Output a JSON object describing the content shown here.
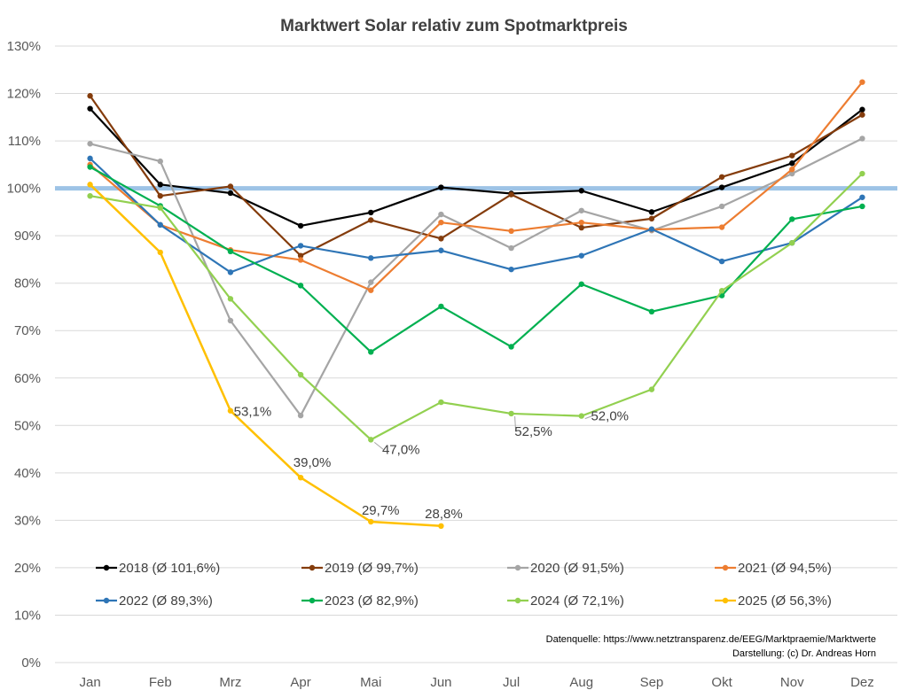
{
  "chart_data": {
    "type": "line",
    "title": "Marktwert Solar relativ zum Spotmarktpreis",
    "categories": [
      "Jan",
      "Feb",
      "Mrz",
      "Apr",
      "Mai",
      "Jun",
      "Jul",
      "Aug",
      "Sep",
      "Okt",
      "Nov",
      "Dez"
    ],
    "yticks": [
      "0%",
      "10%",
      "20%",
      "30%",
      "40%",
      "50%",
      "60%",
      "70%",
      "80%",
      "90%",
      "100%",
      "110%",
      "120%",
      "130%"
    ],
    "ylim": [
      0,
      130
    ],
    "grid": true,
    "legend_position": "bottom",
    "reference_line": {
      "value": 100,
      "color": "#9dc3e6"
    },
    "series": [
      {
        "name": "2018 (Ø 101,6%)",
        "color": "#000000",
        "values": [
          116.8,
          100.8,
          99.0,
          92.1,
          94.9,
          100.2,
          98.9,
          99.5,
          95.0,
          100.2,
          105.3,
          116.6
        ]
      },
      {
        "name": "2019 (Ø 99,7%)",
        "color": "#843c0c",
        "values": [
          119.5,
          98.4,
          100.4,
          85.8,
          93.3,
          89.4,
          98.7,
          91.7,
          93.6,
          102.4,
          106.9,
          115.5
        ]
      },
      {
        "name": "2020 (Ø 91,5%)",
        "color": "#a5a5a5",
        "values": [
          109.4,
          105.7,
          72.1,
          52.1,
          80.2,
          94.5,
          87.4,
          95.3,
          91.1,
          96.2,
          103.1,
          110.5
        ]
      },
      {
        "name": "2021 (Ø 94,5%)",
        "color": "#ed7d31",
        "values": [
          105.0,
          92.3,
          87.0,
          84.9,
          78.5,
          92.8,
          91.0,
          92.8,
          91.3,
          91.8,
          104.0,
          122.4
        ]
      },
      {
        "name": "2022 (Ø 89,3%)",
        "color": "#2e75b6",
        "values": [
          106.3,
          92.3,
          82.3,
          87.9,
          85.3,
          86.9,
          82.9,
          85.8,
          91.4,
          84.6,
          88.5,
          98.1
        ]
      },
      {
        "name": "2023 (Ø 82,9%)",
        "color": "#00b050",
        "values": [
          104.5,
          96.3,
          86.7,
          79.5,
          65.5,
          75.1,
          66.6,
          79.8,
          74.0,
          77.4,
          93.5,
          96.2
        ]
      },
      {
        "name": "2024 (Ø 72,1%)",
        "color": "#92d050",
        "values": [
          98.4,
          95.9,
          76.7,
          60.7,
          47.0,
          54.9,
          52.5,
          52.0,
          57.6,
          78.4,
          88.5,
          103.1
        ]
      },
      {
        "name": "2025 (Ø 56,3%)",
        "color": "#ffc000",
        "values": [
          100.8,
          86.5,
          53.1,
          39.0,
          29.7,
          28.8,
          null,
          null,
          null,
          null,
          null,
          null
        ]
      }
    ],
    "annotations": [
      {
        "series": "2025 (Ø 56,3%)",
        "category": "Mrz",
        "text": "53,1%"
      },
      {
        "series": "2025 (Ø 56,3%)",
        "category": "Apr",
        "text": "39,0%"
      },
      {
        "series": "2025 (Ø 56,3%)",
        "category": "Mai",
        "text": "29,7%"
      },
      {
        "series": "2025 (Ø 56,3%)",
        "category": "Jun",
        "text": "28,8%"
      },
      {
        "series": "2024 (Ø 72,1%)",
        "category": "Mai",
        "text": "47,0%"
      },
      {
        "series": "2024 (Ø 72,1%)",
        "category": "Jul",
        "text": "52,5%"
      },
      {
        "series": "2024 (Ø 72,1%)",
        "category": "Aug",
        "text": "52,0%"
      }
    ]
  },
  "source": {
    "line1": "Datenquelle: https://www.netztransparenz.de/EEG/Marktpraemie/Marktwerte",
    "line2": "Darstellung: (c) Dr. Andreas Horn"
  }
}
